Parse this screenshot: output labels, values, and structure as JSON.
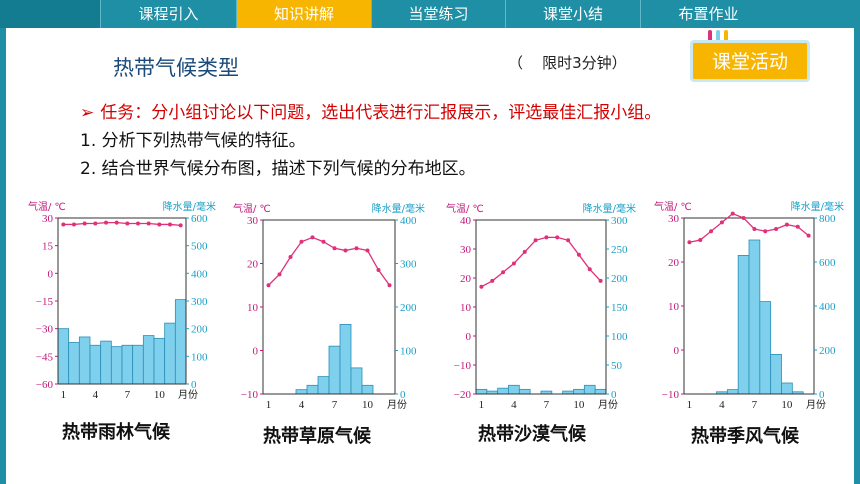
{
  "nav": {
    "tabs": [
      {
        "label": "课程引入",
        "active": false
      },
      {
        "label": "知识讲解",
        "active": true
      },
      {
        "label": "当堂练习",
        "active": false
      },
      {
        "label": "课堂小结",
        "active": false
      },
      {
        "label": "布置作业",
        "active": false
      }
    ]
  },
  "page": {
    "title": "热带气候类型",
    "timer": "（    限时3分钟）",
    "activity_button": "课堂活动",
    "task": "任务：分小组讨论以下问题，选出代表进行汇报展示，评选最佳汇报小组。",
    "q1": "1. 分析下列热带气候的特征。",
    "q2": "2. 结合世界气候分布图，描述下列气候的分布地区。"
  },
  "colors": {
    "nav": "#1e8fa5",
    "nav_active": "#f7b500",
    "temp_line": "#e0307a",
    "axis_temp": "#c2187a",
    "axis_precip": "#1aa0c8",
    "bar_fill": "#7fd0ec",
    "bar_stroke": "#2a8fb8"
  },
  "chart_data": [
    {
      "type": "bar+line",
      "title": "热带雨林气候",
      "ylabel_left": "气温/ ℃",
      "ylabel_right": "降水量/毫米",
      "xlabel": "月份",
      "x_ticks": [
        "1",
        "4",
        "7",
        "10"
      ],
      "temp_ylim": [
        -60,
        30
      ],
      "temp_ticks": [
        30,
        15,
        0,
        -15,
        -30,
        -45,
        -60
      ],
      "precip_ylim": [
        0,
        600
      ],
      "precip_ticks": [
        600,
        500,
        400,
        300,
        200,
        100,
        0
      ],
      "months": [
        1,
        2,
        3,
        4,
        5,
        6,
        7,
        8,
        9,
        10,
        11,
        12
      ],
      "temperature": [
        26.5,
        26.5,
        27,
        27,
        27.5,
        27.5,
        27,
        27,
        27,
        26.5,
        26.5,
        26
      ],
      "precipitation": [
        200,
        150,
        170,
        140,
        155,
        135,
        140,
        140,
        175,
        165,
        220,
        305
      ]
    },
    {
      "type": "bar+line",
      "title": "热带草原气候",
      "ylabel_left": "气温/ ℃",
      "ylabel_right": "降水量/毫米",
      "xlabel": "月份",
      "x_ticks": [
        "1",
        "4",
        "7",
        "10"
      ],
      "temp_ylim": [
        -10,
        30
      ],
      "temp_ticks": [
        30,
        20,
        10,
        0,
        -10
      ],
      "precip_ylim": [
        0,
        400
      ],
      "precip_ticks": [
        400,
        300,
        200,
        100,
        0
      ],
      "months": [
        1,
        2,
        3,
        4,
        5,
        6,
        7,
        8,
        9,
        10,
        11,
        12
      ],
      "temperature": [
        15,
        17.5,
        21.5,
        25,
        26,
        25,
        23.5,
        23,
        23.5,
        23,
        18.5,
        15
      ],
      "precip_values": [
        0,
        0,
        0,
        10,
        20,
        40,
        110,
        160,
        60,
        20,
        0,
        0
      ],
      "precipitation": [
        0,
        0,
        0,
        10,
        20,
        40,
        110,
        160,
        60,
        20,
        0,
        0
      ]
    },
    {
      "type": "bar+line",
      "title": "热带沙漠气候",
      "ylabel_left": "气温/ ℃",
      "ylabel_right": "降水量/毫米",
      "xlabel": "月份",
      "x_ticks": [
        "1",
        "4",
        "7",
        "10"
      ],
      "temp_ylim": [
        -20,
        40
      ],
      "temp_ticks": [
        40,
        30,
        20,
        10,
        0,
        -10,
        -20
      ],
      "precip_ylim": [
        0,
        300
      ],
      "precip_ticks": [
        300,
        250,
        200,
        150,
        100,
        50,
        0
      ],
      "months": [
        1,
        2,
        3,
        4,
        5,
        6,
        7,
        8,
        9,
        10,
        11,
        12
      ],
      "temperature": [
        17,
        19,
        22,
        25,
        29,
        33,
        34,
        34,
        33,
        28,
        23,
        19
      ],
      "precipitation": [
        8,
        5,
        10,
        15,
        8,
        0,
        5,
        0,
        5,
        8,
        15,
        8
      ]
    },
    {
      "type": "bar+line",
      "title": "热带季风气候",
      "ylabel_left": "气温/ ℃",
      "ylabel_right": "降水量/毫米",
      "xlabel": "月份",
      "x_ticks": [
        "1",
        "4",
        "7",
        "10"
      ],
      "temp_ylim": [
        -10,
        30
      ],
      "temp_ticks": [
        30,
        20,
        10,
        0,
        -10
      ],
      "precip_ylim": [
        0,
        800
      ],
      "precip_ticks": [
        800,
        600,
        400,
        200,
        0
      ],
      "months": [
        1,
        2,
        3,
        4,
        5,
        6,
        7,
        8,
        9,
        10,
        11,
        12
      ],
      "temperature": [
        24.5,
        25,
        27,
        29,
        31,
        30,
        27.5,
        27,
        27.5,
        28.5,
        28,
        26
      ],
      "precipitation": [
        0,
        0,
        0,
        10,
        20,
        630,
        700,
        420,
        180,
        50,
        10,
        0
      ]
    }
  ]
}
